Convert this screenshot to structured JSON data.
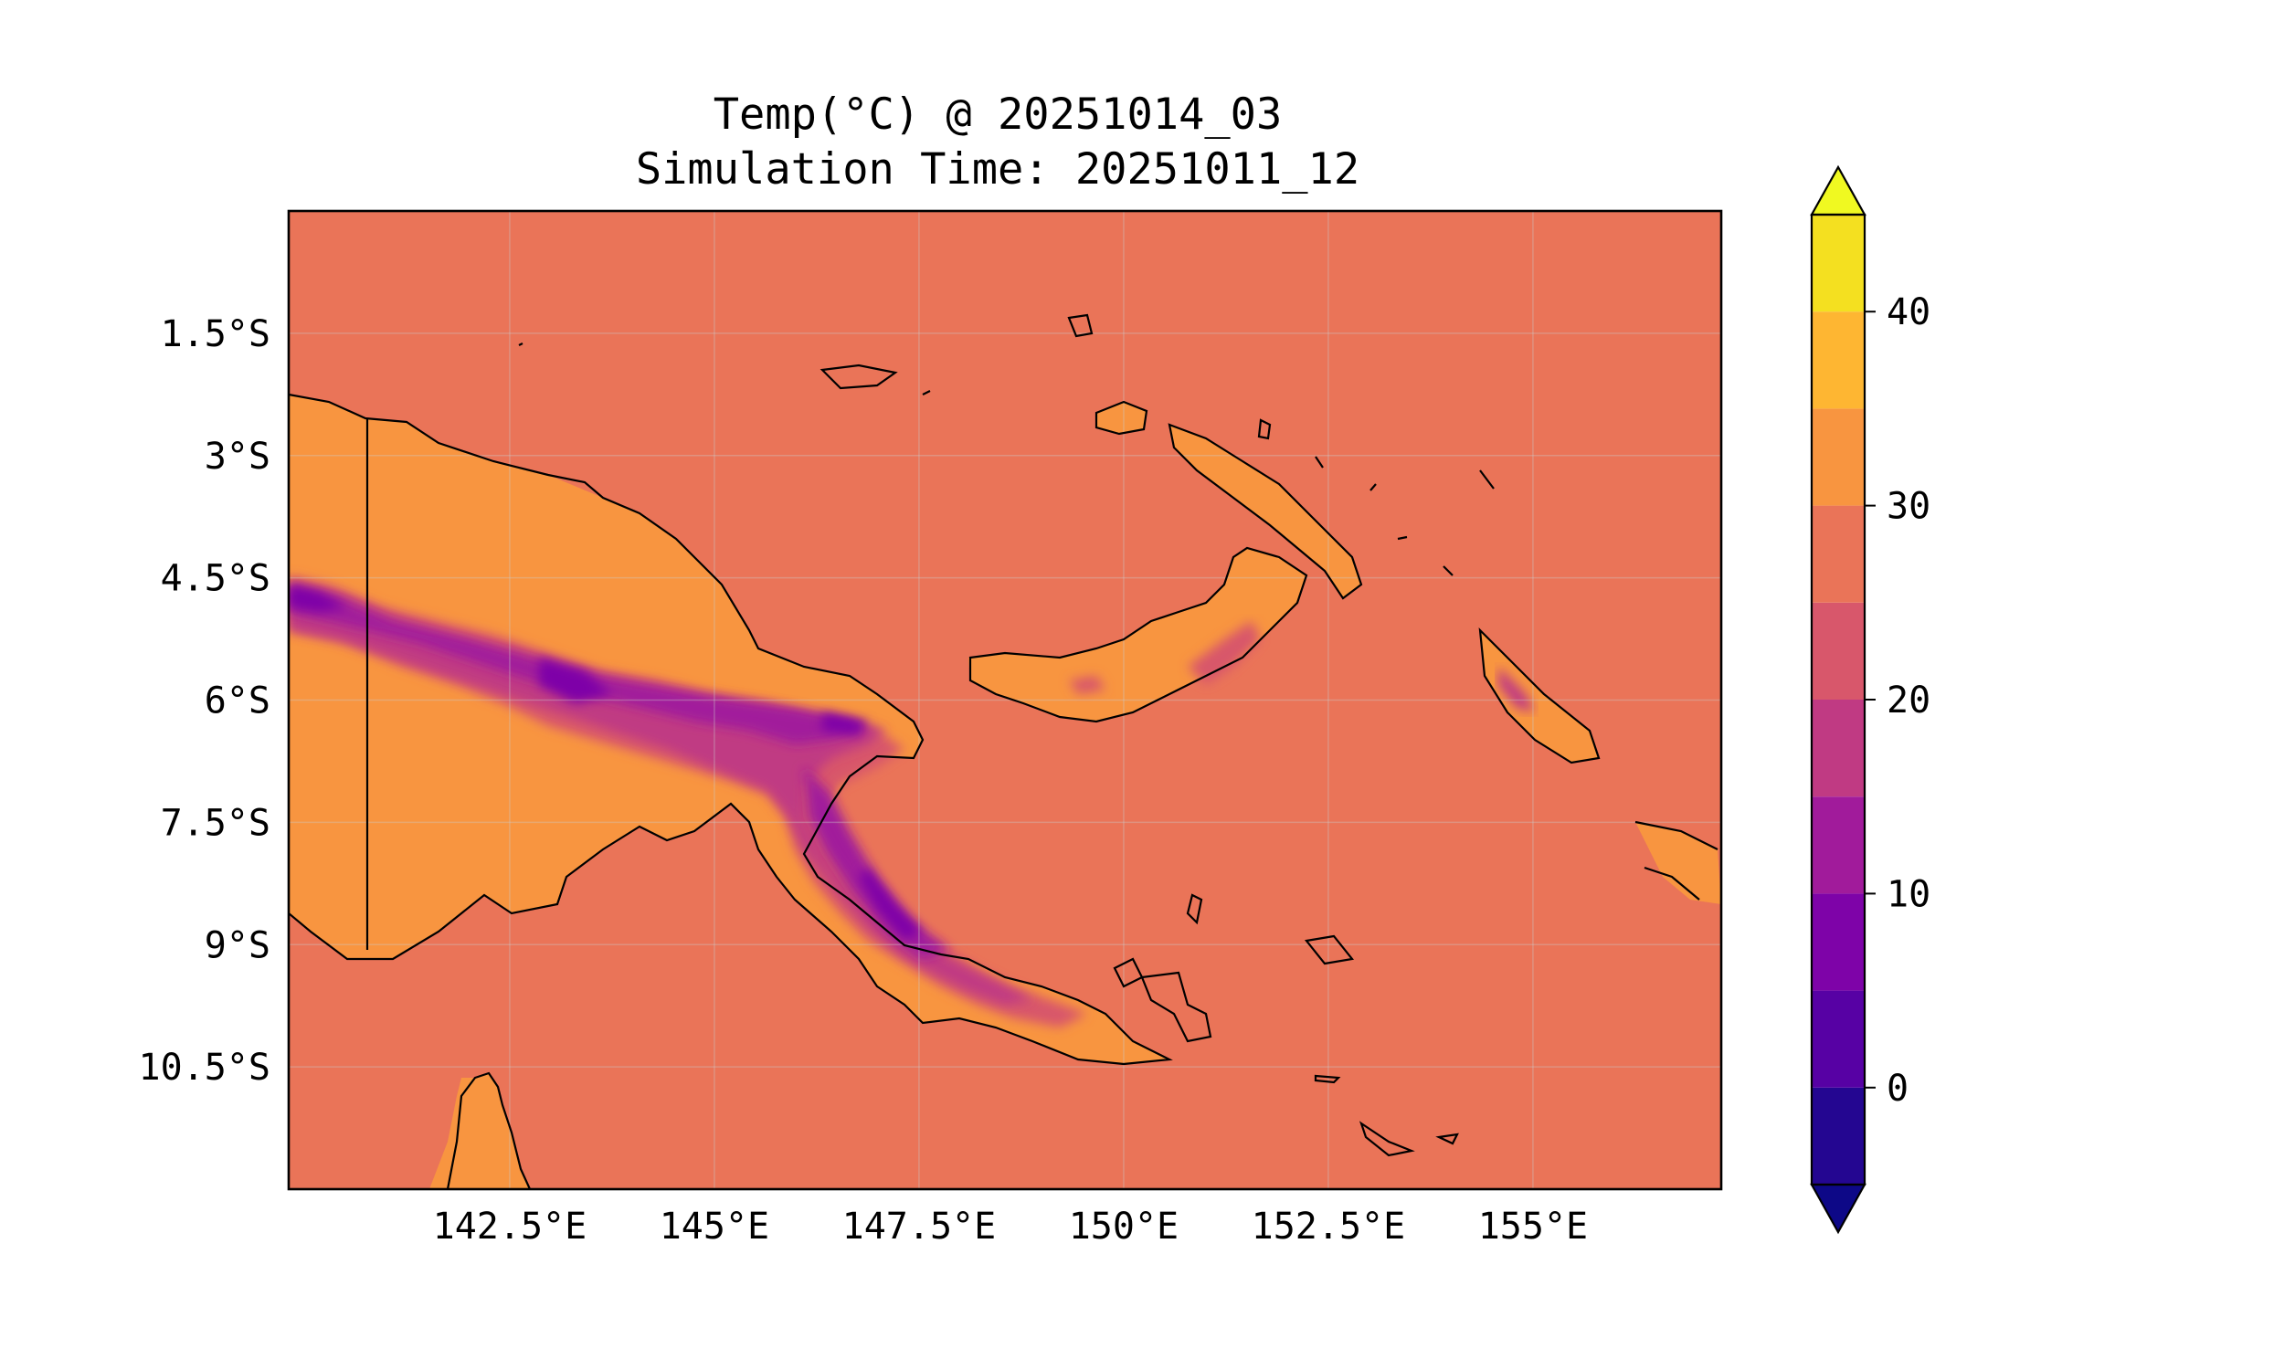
{
  "title": {
    "line1": "Temp(°C) @ 20251014_03",
    "line2": "Simulation Time: 20251011_12"
  },
  "map": {
    "extent": {
      "lon": [
        139.8,
        157.3
      ],
      "lat": [
        -12.0,
        0.0
      ]
    },
    "x_ticks": [
      "142.5°E",
      "145°E",
      "147.5°E",
      "150°E",
      "152.5°E",
      "155°E"
    ],
    "x_tick_values": [
      142.5,
      145,
      147.5,
      150,
      152.5,
      155
    ],
    "y_ticks": [
      "1.5°S",
      "3°S",
      "4.5°S",
      "6°S",
      "7.5°S",
      "9°S",
      "10.5°S"
    ],
    "y_tick_values": [
      -1.5,
      -3,
      -4.5,
      -6,
      -7.5,
      -9,
      -10.5
    ],
    "ocean_color": "#ea7458",
    "gridlines": true
  },
  "colorbar": {
    "tick_labels": [
      "0",
      "10",
      "20",
      "30",
      "40"
    ],
    "tick_values": [
      0,
      10,
      20,
      30,
      40
    ],
    "range": [
      -5,
      45
    ],
    "extend": "both",
    "levels": [
      {
        "from": -5,
        "to": 0,
        "color": "#240691"
      },
      {
        "from": 0,
        "to": 5,
        "color": "#5701a4"
      },
      {
        "from": 5,
        "to": 10,
        "color": "#7e03a8"
      },
      {
        "from": 10,
        "to": 15,
        "color": "#a11b9b"
      },
      {
        "from": 15,
        "to": 20,
        "color": "#c03a83"
      },
      {
        "from": 20,
        "to": 25,
        "color": "#d8576b"
      },
      {
        "from": 25,
        "to": 30,
        "color": "#ea7458"
      },
      {
        "from": 30,
        "to": 35,
        "color": "#f89540"
      },
      {
        "from": 35,
        "to": 40,
        "color": "#feb632"
      },
      {
        "from": 40,
        "to": 45,
        "color": "#f4e020"
      }
    ],
    "under_color": "#0d0887",
    "over_color": "#f0f921"
  }
}
